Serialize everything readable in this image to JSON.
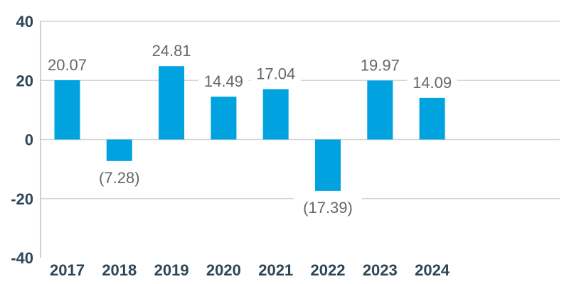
{
  "chart_data": {
    "type": "bar",
    "title": "",
    "xlabel": "",
    "ylabel": "",
    "categories": [
      "2017",
      "2018",
      "2019",
      "2020",
      "2021",
      "2022",
      "2023",
      "2024"
    ],
    "values": [
      20.07,
      -7.28,
      24.81,
      14.49,
      17.04,
      -17.39,
      19.97,
      14.09
    ],
    "data_labels": [
      "20.07",
      "(7.28)",
      "24.81",
      "14.49",
      "17.04",
      "(17.39)",
      "19.97",
      "14.09"
    ],
    "ylim": [
      -40,
      40
    ],
    "yticks": [
      40,
      20,
      0,
      -20,
      -40
    ],
    "ytick_labels": [
      "40",
      "20",
      "0",
      "-20",
      "-40"
    ],
    "grid": true,
    "bar_color": "#00a3e0"
  }
}
